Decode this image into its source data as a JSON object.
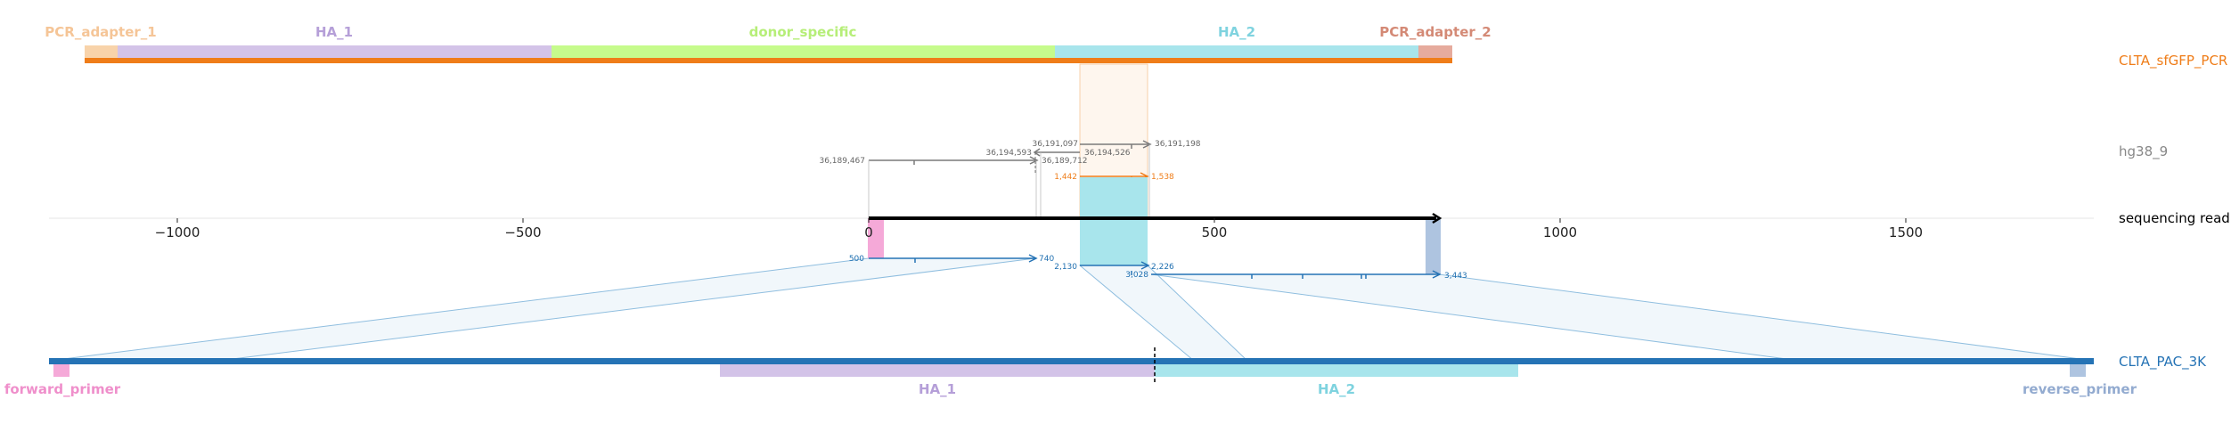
{
  "tracks": {
    "top": {
      "name": "CLTA_sfGFP_PCR",
      "color": "#ef7d19"
    },
    "hg38": {
      "name": "hg38_9",
      "color": "#888888"
    },
    "read": {
      "name": "sequencing read",
      "color": "#000000"
    },
    "bottom": {
      "name": "CLTA_PAC_3K",
      "color": "#2573b5"
    }
  },
  "top_segments": [
    {
      "label": "PCR_adapter_1",
      "color": "#f8d3aa",
      "text_color": "#f5c597"
    },
    {
      "label": "HA_1",
      "color": "#d3c3e8",
      "text_color": "#b59fd8"
    },
    {
      "label": "donor_specific",
      "color": "#c6fb8c",
      "text_color": "#b6ee78"
    },
    {
      "label": "HA_2",
      "color": "#a8e5ec",
      "text_color": "#7fd3df"
    },
    {
      "label": "PCR_adapter_2",
      "color": "#e6ab9d",
      "text_color": "#d48a76"
    }
  ],
  "bottom_segments": [
    {
      "label": "forward_primer",
      "color": "#f5a9d8",
      "text_color": "#ef8fcb"
    },
    {
      "label": "HA_1",
      "color": "#d3c3e8",
      "text_color": "#b59fd8"
    },
    {
      "label": "HA_2",
      "color": "#a8e5ec",
      "text_color": "#7fd3df"
    },
    {
      "label": "reverse_primer",
      "color": "#aec4e0",
      "text_color": "#93abd0"
    }
  ],
  "axis": {
    "ticks": [
      {
        "value": -1000,
        "label": "−1000"
      },
      {
        "value": -500,
        "label": "−500"
      },
      {
        "value": 0,
        "label": "0"
      },
      {
        "value": 500,
        "label": "500"
      },
      {
        "value": 1000,
        "label": "1000"
      },
      {
        "value": 1500,
        "label": "1500"
      }
    ]
  },
  "hg38_alignments": [
    {
      "start": "36,189,467",
      "end": "36,189,712"
    },
    {
      "start": "36,194,593",
      "end": "36,194,526"
    },
    {
      "start": "36,191,097",
      "end": "36,191,198"
    }
  ],
  "top_alignment": {
    "start": "1,442",
    "end": "1,538"
  },
  "bottom_alignments": [
    {
      "start": "500",
      "end": "740"
    },
    {
      "start": "2,130",
      "end": "2,226"
    },
    {
      "start": "3,028",
      "end": "3,443"
    }
  ]
}
